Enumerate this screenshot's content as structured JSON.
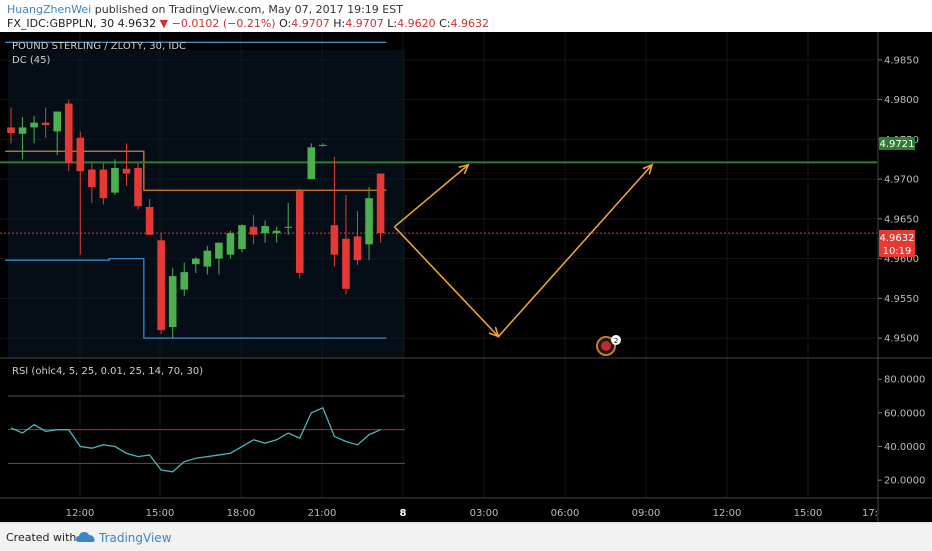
{
  "header": {
    "author": "HuangZhenWei",
    "published": "published on TradingView.com, May 07, 2017 19:19 EST",
    "symbol": "FX_IDC:GBPPLN, 30",
    "price": "4.9632",
    "change": "−0.0102 (−0.21%)",
    "o_label": "O:",
    "o_value": "4.9707",
    "h_label": "H:",
    "h_value": "4.9707",
    "l_label": "L:",
    "l_value": "4.9620",
    "c_label": "C:",
    "c_value": "4.9632"
  },
  "main_legend": {
    "title": "POUND STERLING / ZLOTY, 30, IDC",
    "indicator": "DC (45)"
  },
  "rsi_legend": "RSI (ohlc4, 5, 25, 0.01, 25, 14, 70, 30)",
  "price_axis": {
    "ticks": [
      "4.9850",
      "4.9800",
      "4.9750",
      "4.9700",
      "4.9650",
      "4.9600",
      "4.9550",
      "4.9500"
    ],
    "tick_values": [
      4.985,
      4.98,
      4.975,
      4.97,
      4.965,
      4.96,
      4.955,
      4.95
    ],
    "level_label": "4.9721",
    "last_price_label": "4.9632",
    "countdown_label": "10:19"
  },
  "rsi_axis": {
    "ticks": [
      "80.0000",
      "60.0000",
      "40.0000",
      "20.0000"
    ],
    "tick_values": [
      80,
      60,
      40,
      20
    ]
  },
  "time_axis": {
    "labels": [
      "12:00",
      "15:00",
      "18:00",
      "21:00",
      "8",
      "03:00",
      "06:00",
      "09:00",
      "12:00",
      "15:00",
      "17:"
    ]
  },
  "event_badge": "2",
  "footer": {
    "created_with": "Created with",
    "brand": "TradingView"
  },
  "colors": {
    "background": "#000000",
    "up_candle": "#4caf50",
    "down_candle": "#e53935",
    "donchian_upper_lower": "#3f88c5",
    "donchian_basis": "#e07b2a",
    "level_line": "#2e7d32",
    "arrows": "#f0a030",
    "rsi_line": "#4ab8b8",
    "rsi_mid": "#b03030"
  },
  "chart_data": {
    "type": "candlestick",
    "title": "POUND STERLING / ZLOTY, 30, IDC",
    "price_ylim": [
      4.9475,
      4.9885
    ],
    "candles": [
      {
        "o": 4.9765,
        "h": 4.979,
        "l": 4.9745,
        "c": 4.9758
      },
      {
        "o": 4.9757,
        "h": 4.9778,
        "l": 4.9725,
        "c": 4.9765
      },
      {
        "o": 4.9765,
        "h": 4.9779,
        "l": 4.9745,
        "c": 4.9771
      },
      {
        "o": 4.9771,
        "h": 4.979,
        "l": 4.9752,
        "c": 4.9768
      },
      {
        "o": 4.976,
        "h": 4.9785,
        "l": 4.973,
        "c": 4.9785
      },
      {
        "o": 4.9795,
        "h": 4.98,
        "l": 4.971,
        "c": 4.972
      },
      {
        "o": 4.9752,
        "h": 4.976,
        "l": 4.9605,
        "c": 4.971
      },
      {
        "o": 4.9712,
        "h": 4.972,
        "l": 4.967,
        "c": 4.969
      },
      {
        "o": 4.9712,
        "h": 4.972,
        "l": 4.9668,
        "c": 4.9676
      },
      {
        "o": 4.9683,
        "h": 4.9725,
        "l": 4.968,
        "c": 4.9714
      },
      {
        "o": 4.9713,
        "h": 4.9745,
        "l": 4.9692,
        "c": 4.9707
      },
      {
        "o": 4.9714,
        "h": 4.972,
        "l": 4.9662,
        "c": 4.9666
      },
      {
        "o": 4.9665,
        "h": 4.9675,
        "l": 4.963,
        "c": 4.963
      },
      {
        "o": 4.9623,
        "h": 4.9632,
        "l": 4.9505,
        "c": 4.951
      },
      {
        "o": 4.9514,
        "h": 4.9588,
        "l": 4.95,
        "c": 4.9578
      },
      {
        "o": 4.9561,
        "h": 4.9595,
        "l": 4.9553,
        "c": 4.9583
      },
      {
        "o": 4.9593,
        "h": 4.9602,
        "l": 4.9582,
        "c": 4.96
      },
      {
        "o": 4.959,
        "h": 4.9616,
        "l": 4.958,
        "c": 4.961
      },
      {
        "o": 4.96,
        "h": 4.962,
        "l": 4.958,
        "c": 4.962
      },
      {
        "o": 4.9605,
        "h": 4.9635,
        "l": 4.96,
        "c": 4.9632
      },
      {
        "o": 4.9612,
        "h": 4.9643,
        "l": 4.9608,
        "c": 4.9642
      },
      {
        "o": 4.964,
        "h": 4.9655,
        "l": 4.9618,
        "c": 4.963
      },
      {
        "o": 4.9632,
        "h": 4.9648,
        "l": 4.962,
        "c": 4.9641
      },
      {
        "o": 4.9632,
        "h": 4.964,
        "l": 4.962,
        "c": 4.9635
      },
      {
        "o": 4.964,
        "h": 4.967,
        "l": 4.963,
        "c": 4.964
      },
      {
        "o": 4.9685,
        "h": 4.9688,
        "l": 4.9575,
        "c": 4.9582
      },
      {
        "o": 4.97,
        "h": 4.9745,
        "l": 4.97,
        "c": 4.974
      },
      {
        "o": 4.9742,
        "h": 4.9745,
        "l": 4.9741,
        "c": 4.9743
      },
      {
        "o": 4.9642,
        "h": 4.9728,
        "l": 4.959,
        "c": 4.9605
      },
      {
        "o": 4.9625,
        "h": 4.968,
        "l": 4.9555,
        "c": 4.9562
      },
      {
        "o": 4.9628,
        "h": 4.966,
        "l": 4.9592,
        "c": 4.9598
      },
      {
        "o": 4.9618,
        "h": 4.969,
        "l": 4.9598,
        "c": 4.9676
      },
      {
        "o": 4.9707,
        "h": 4.9707,
        "l": 4.962,
        "c": 4.9632
      }
    ],
    "donchian_upper": [
      4.9872,
      4.9872,
      4.9872,
      4.9872,
      4.9872,
      4.9872,
      4.9872,
      4.9872,
      4.9872,
      4.9872,
      4.9872,
      4.9872,
      4.9872,
      4.9872,
      4.9872,
      4.9872,
      4.9872,
      4.9872,
      4.9872,
      4.9872,
      4.9872,
      4.9872,
      4.9872,
      4.9872,
      4.9872,
      4.9872,
      4.9872,
      4.9872,
      4.9872,
      4.9872,
      4.9872,
      4.9872,
      4.9872
    ],
    "donchian_basis": [
      4.9735,
      4.9735,
      4.9735,
      4.9735,
      4.9735,
      4.9735,
      4.9735,
      4.9735,
      4.9735,
      4.9735,
      4.9735,
      4.9735,
      4.9686,
      4.9686,
      4.9686,
      4.9686,
      4.9686,
      4.9686,
      4.9686,
      4.9686,
      4.9686,
      4.9686,
      4.9686,
      4.9686,
      4.9686,
      4.9686,
      4.9686,
      4.9686,
      4.9686,
      4.9686,
      4.9686,
      4.9686,
      4.9686
    ],
    "donchian_lower": [
      4.9598,
      4.9598,
      4.9598,
      4.9598,
      4.9598,
      4.9598,
      4.9598,
      4.9598,
      4.9598,
      4.96,
      4.96,
      4.96,
      4.95,
      4.95,
      4.95,
      4.95,
      4.95,
      4.95,
      4.95,
      4.95,
      4.95,
      4.95,
      4.95,
      4.95,
      4.95,
      4.95,
      4.95,
      4.95,
      4.95,
      4.95,
      4.95,
      4.95,
      4.95
    ],
    "level": 4.9721,
    "last_price": 4.9632,
    "projection_path": [
      {
        "bar": 33.2,
        "price": 4.964
      },
      {
        "bar": 39.6,
        "price": 4.9718
      }
    ],
    "projection_path_2": [
      {
        "bar": 33.2,
        "price": 4.964
      },
      {
        "bar": 42.2,
        "price": 4.9502
      },
      {
        "bar": 55.5,
        "price": 4.9718
      }
    ],
    "rsi": {
      "ylim": [
        10,
        92
      ],
      "upper_band": 70,
      "mid": 50,
      "lower_band": 30,
      "values": [
        51,
        48,
        53,
        49,
        50,
        50,
        40,
        39,
        41,
        40,
        36,
        34,
        35,
        26,
        25,
        31,
        33,
        34,
        35,
        36,
        40,
        44,
        42,
        44,
        48,
        45,
        60,
        63,
        46,
        43,
        41,
        47,
        50
      ]
    }
  }
}
